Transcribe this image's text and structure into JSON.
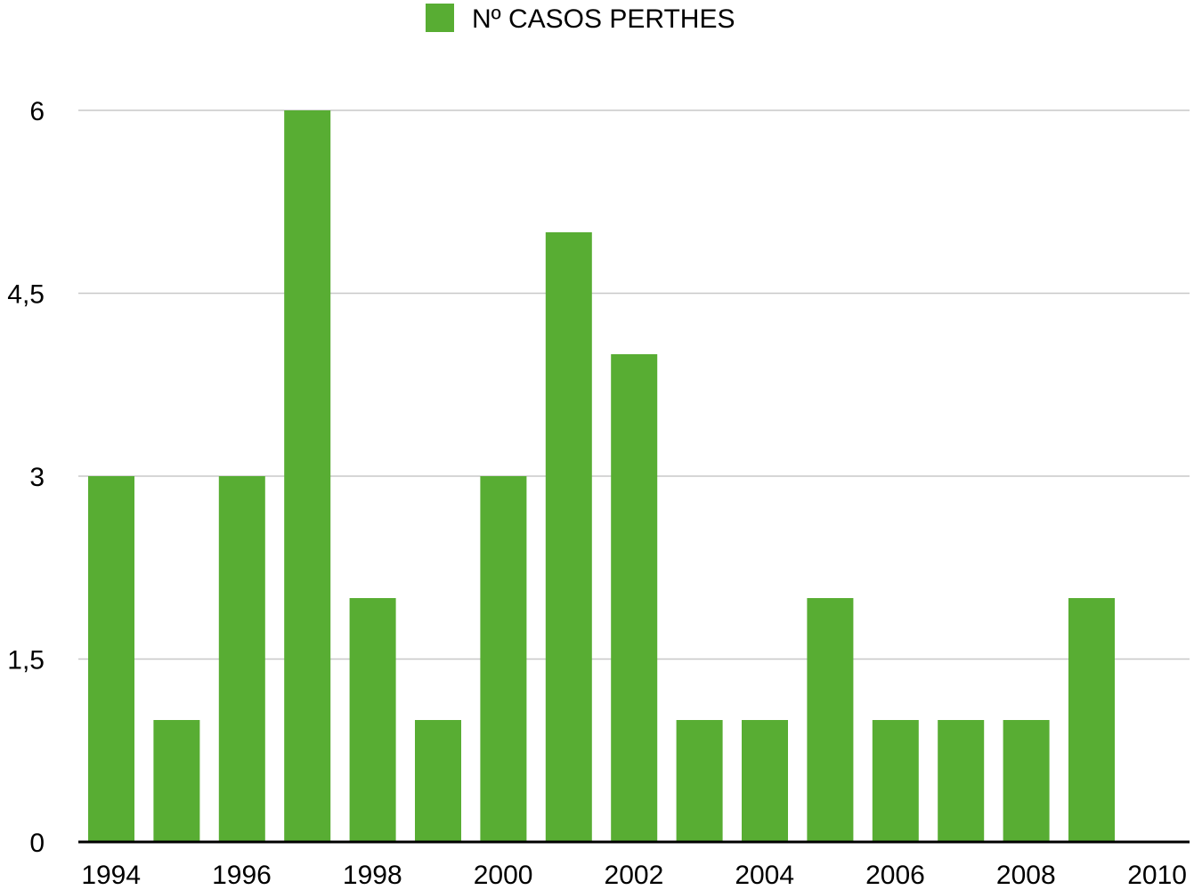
{
  "chart_data": {
    "type": "bar",
    "categories": [
      "1994",
      "1995",
      "1996",
      "1997",
      "1998",
      "1999",
      "2000",
      "2001",
      "2002",
      "2003",
      "2004",
      "2005",
      "2006",
      "2007",
      "2008",
      "2009",
      "2010"
    ],
    "series": [
      {
        "name": "Nº CASOS PERTHES",
        "color": "#58ad33",
        "values": [
          3,
          1,
          3,
          6,
          2,
          1,
          3,
          5,
          4,
          1,
          1,
          2,
          1,
          1,
          1,
          2,
          0
        ]
      }
    ],
    "x_tick_labels": [
      "1994",
      "1996",
      "1998",
      "2000",
      "2002",
      "2004",
      "2006",
      "2008",
      "2010"
    ],
    "y_ticks": [
      0,
      1.5,
      3,
      4.5,
      6
    ],
    "y_tick_labels": [
      "0",
      "1,5",
      "3",
      "4,5",
      "6"
    ],
    "ylim": [
      0,
      6
    ],
    "grid": true,
    "legend_position": "top-center"
  }
}
